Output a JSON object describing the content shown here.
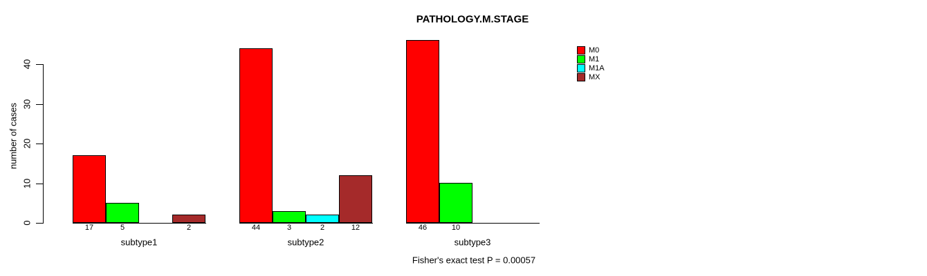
{
  "chart_data": {
    "type": "bar",
    "title": "PATHOLOGY.M.STAGE",
    "ylabel": "number of cases",
    "xlabel": "",
    "categories": [
      "subtype1",
      "subtype2",
      "subtype3"
    ],
    "series": [
      {
        "name": "M0",
        "color": "#ff0000",
        "values": [
          17,
          44,
          46
        ]
      },
      {
        "name": "M1",
        "color": "#00ff00",
        "values": [
          5,
          3,
          10
        ]
      },
      {
        "name": "M1A",
        "color": "#00ffff",
        "values": [
          null,
          2,
          null
        ]
      },
      {
        "name": "MX",
        "color": "#a52a2a",
        "values": [
          2,
          12,
          null
        ]
      }
    ],
    "yticks": [
      0,
      10,
      20,
      30,
      40
    ],
    "ylim": [
      0,
      46
    ],
    "grid": false,
    "legend_position": "top-right",
    "bar_value_labels": true,
    "annotation": "Fisher's exact test P = 0.00057"
  }
}
